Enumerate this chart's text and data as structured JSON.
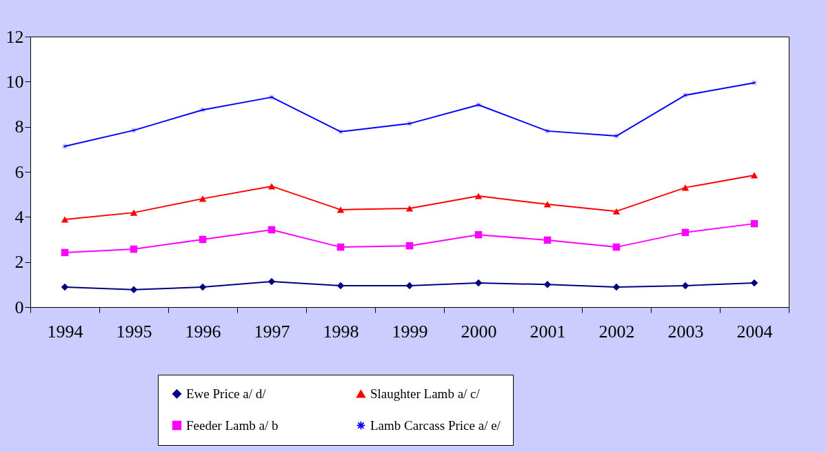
{
  "chart_data": {
    "type": "line",
    "categories": [
      "1994",
      "1995",
      "1996",
      "1997",
      "1998",
      "1999",
      "2000",
      "2001",
      "2002",
      "2003",
      "2004"
    ],
    "series": [
      {
        "name": "Ewe Price a/ d/",
        "color": "#000080",
        "marker": "diamond",
        "values": [
          0.89,
          0.77,
          0.89,
          1.13,
          0.95,
          0.95,
          1.07,
          1.0,
          0.89,
          0.95,
          1.07
        ]
      },
      {
        "name": "Feeder Lamb a/ b",
        "color": "#ff00ff",
        "marker": "square",
        "values": [
          2.42,
          2.57,
          3.0,
          3.43,
          2.66,
          2.72,
          3.21,
          2.97,
          2.66,
          3.31,
          3.7
        ]
      },
      {
        "name": "Slaughter Lamb a/ c/",
        "color": "#ff0000",
        "marker": "triangle",
        "values": [
          3.89,
          4.19,
          4.81,
          5.36,
          4.32,
          4.38,
          4.93,
          4.56,
          4.25,
          5.3,
          5.85
        ]
      },
      {
        "name": "Lamb Carcass Price a/ e/",
        "color": "#0000ff",
        "marker": "star",
        "values": [
          7.13,
          7.84,
          8.75,
          9.31,
          7.78,
          8.14,
          8.97,
          7.81,
          7.59,
          9.4,
          9.95
        ]
      }
    ],
    "ylim": [
      0,
      12
    ],
    "yticks": [
      0,
      2,
      4,
      6,
      8,
      10,
      12
    ],
    "grid": false,
    "legend": "bottom",
    "line_style": "solid"
  }
}
